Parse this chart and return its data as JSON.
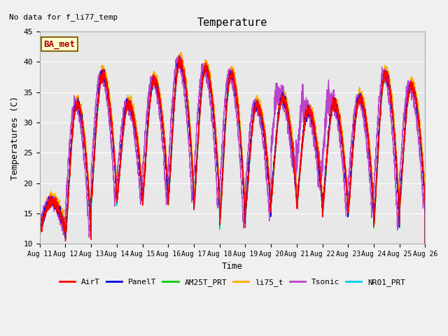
{
  "title": "Temperature",
  "ylabel": "Temperatures (C)",
  "xlabel": "Time",
  "annotation": "No data for f_li77_temp",
  "ba_met_label": "BA_met",
  "ylim": [
    10,
    45
  ],
  "x_tick_labels": [
    "Aug 11",
    "Aug 12",
    "Aug 13",
    "Aug 14",
    "Aug 15",
    "Aug 16",
    "Aug 17",
    "Aug 18",
    "Aug 19",
    "Aug 20",
    "Aug 21",
    "Aug 22",
    "Aug 23",
    "Aug 24",
    "Aug 25",
    "Aug 26"
  ],
  "series_colors": {
    "AirT": "#ff0000",
    "PanelT": "#0000dd",
    "AM25T_PRT": "#00cc00",
    "li75_t": "#ffaa00",
    "Tsonic": "#bb44cc",
    "NR01_PRT": "#00ccee"
  },
  "series_lw": {
    "AirT": 1.0,
    "PanelT": 1.0,
    "AM25T_PRT": 1.0,
    "li75_t": 1.0,
    "Tsonic": 1.0,
    "NR01_PRT": 1.3
  },
  "daily_peaks": [
    17,
    33,
    38,
    33,
    37,
    40,
    39,
    38,
    33,
    34,
    32,
    33,
    34,
    38,
    36
  ],
  "daily_mins": [
    12,
    11,
    17,
    17,
    17,
    17,
    16,
    13,
    15,
    17,
    16,
    15,
    15,
    13,
    16
  ],
  "background_color": "#f0f0f0",
  "plot_bg": "#e8e8e8",
  "grid_color": "#ffffff"
}
